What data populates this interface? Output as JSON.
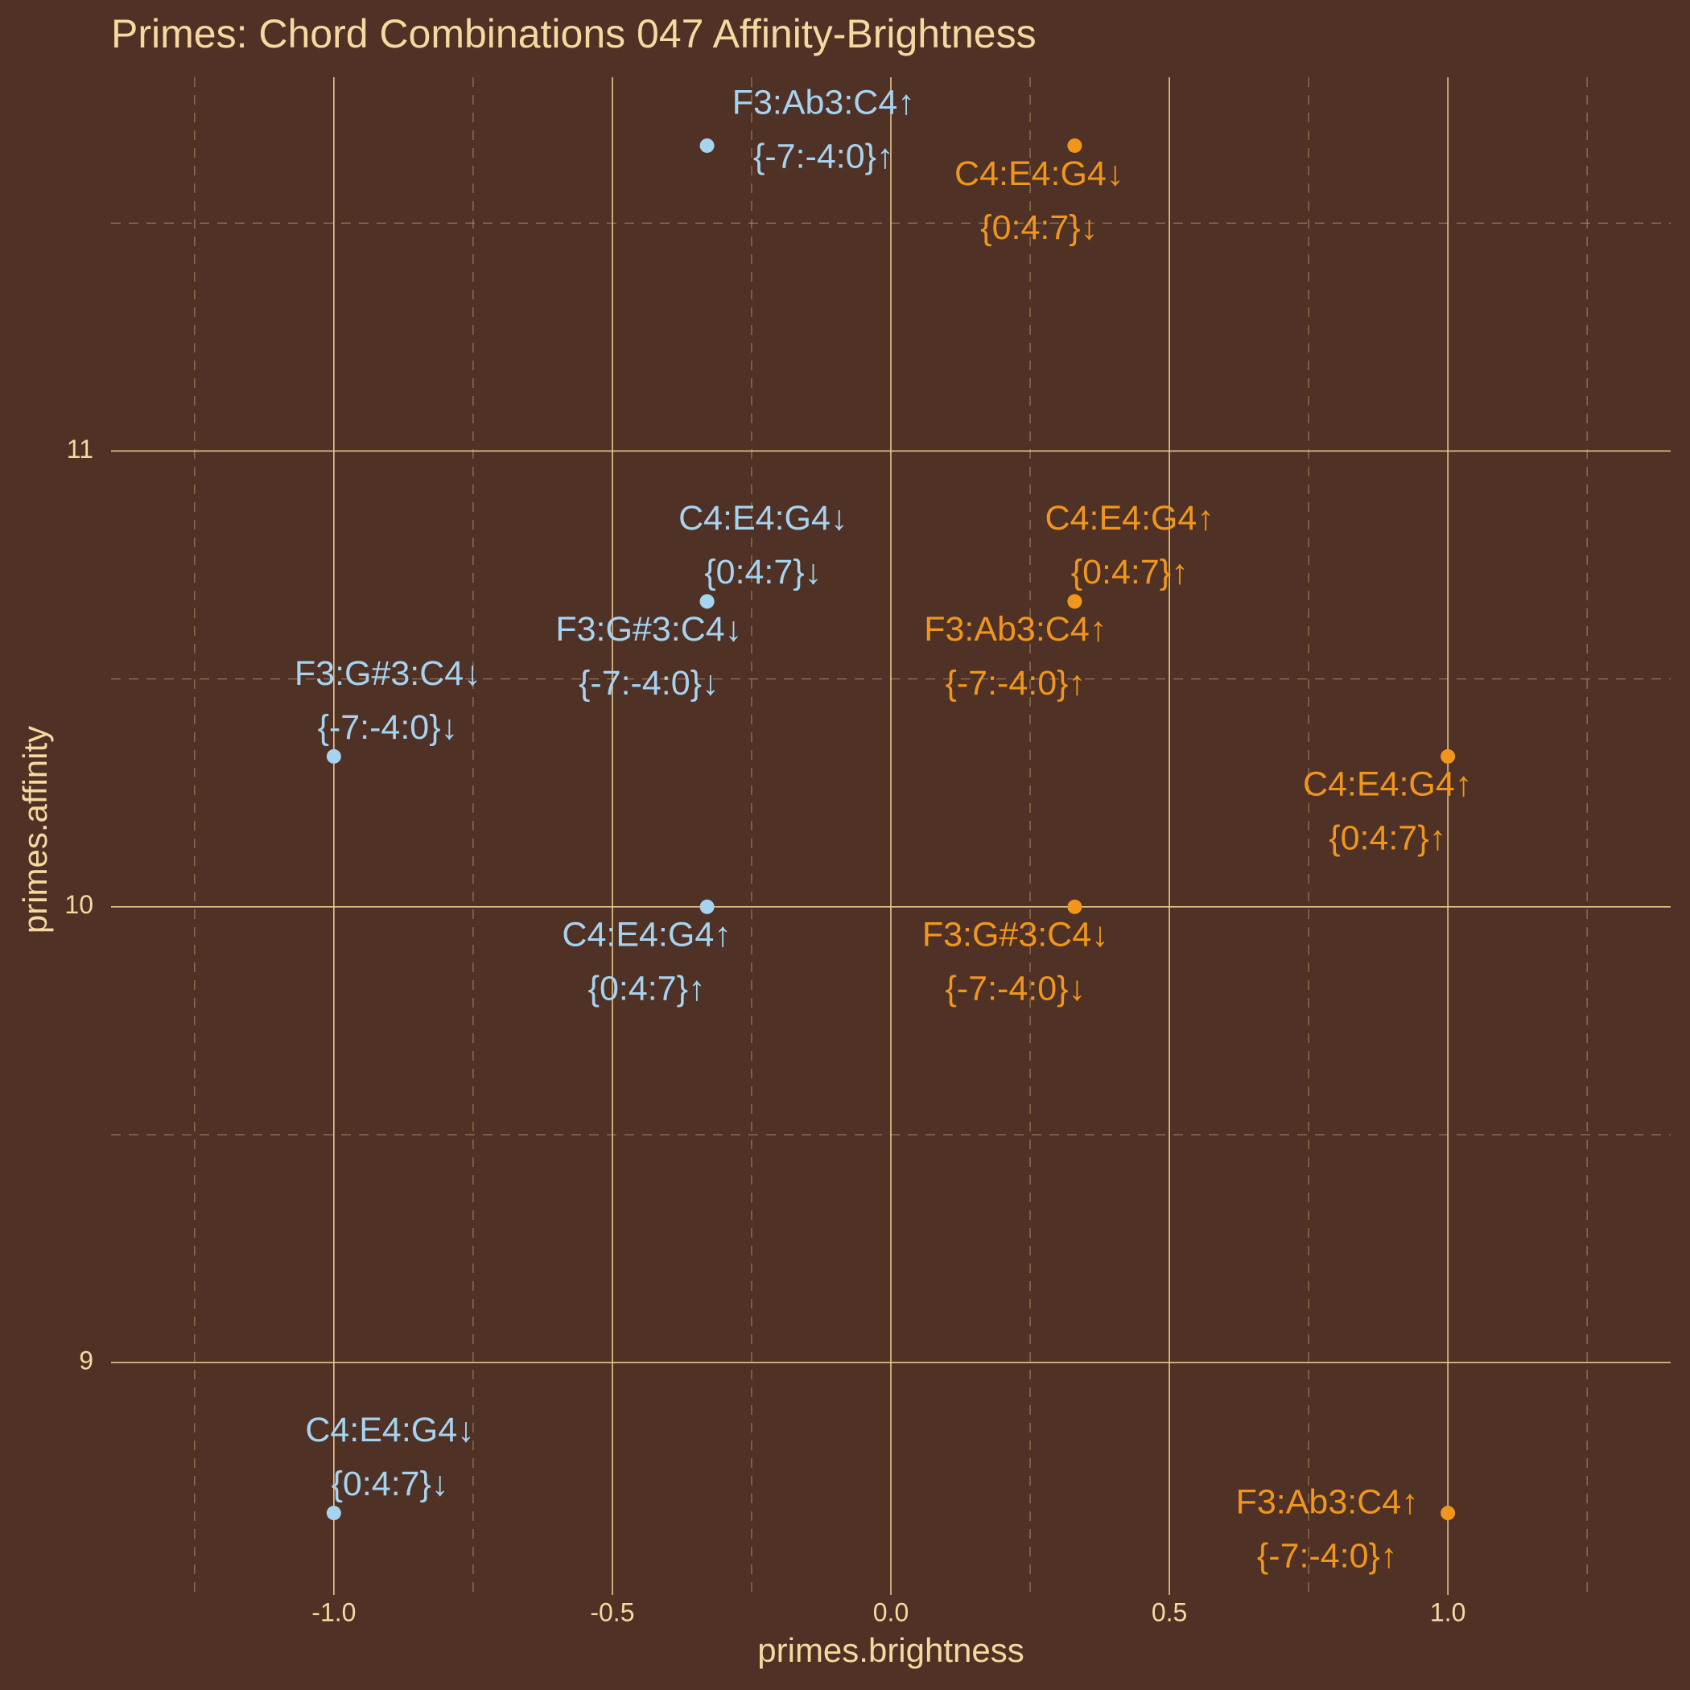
{
  "chart_data": {
    "type": "scatter",
    "title": "Primes: Chord Combinations 047 Affinity-Brightness",
    "xlabel": "primes.brightness",
    "ylabel": "primes.affinity",
    "xlim": [
      -1.4,
      1.4
    ],
    "ylim": [
      8.49,
      11.82
    ],
    "xticks": [
      {
        "value": -1,
        "label": "-1.0"
      },
      -0.5,
      {
        "value": 0,
        "label": "0.0"
      },
      0.5,
      {
        "value": 1,
        "label": "1.0"
      }
    ],
    "yticks": [
      9,
      10,
      11
    ],
    "xminor": [
      -1.25,
      -0.75,
      -0.25,
      0.25,
      0.75,
      1.25
    ],
    "yminor": [
      9.5,
      10.5,
      11.5
    ],
    "grid": true,
    "series": [
      {
        "color": "#a6d3f0",
        "x": [
          -0.33,
          -0.33,
          -0.33,
          -1,
          -0.33,
          -1
        ],
        "y": [
          11.67,
          10.67,
          10.67,
          10.33,
          10,
          8.67
        ],
        "labels": [
          [
            "F3:Ab3:C4↑",
            "{-7:-4:0}↑"
          ],
          [
            "C4:E4:G4↓",
            "{0:4:7}↓"
          ],
          [
            "F3:G#3:C4↓",
            "{-7:-4:0}↓"
          ],
          [
            "F3:G#3:C4↓",
            "{-7:-4:0}↓"
          ],
          [
            "C4:E4:G4↑",
            "{0:4:7}↑"
          ],
          [
            "C4:E4:G4↓",
            "{0:4:7}↓"
          ]
        ]
      },
      {
        "color": "#f0961c",
        "x": [
          0.33,
          0.33,
          0.33,
          1,
          0.33,
          1
        ],
        "y": [
          11.67,
          10.67,
          10.67,
          10.33,
          10,
          8.67
        ],
        "labels": [
          [
            "C4:E4:G4↓",
            "{0:4:7}↓"
          ],
          [
            "C4:E4:G4↑",
            "{0:4:7}↑"
          ],
          [
            "F3:Ab3:C4↑",
            "{-7:-4:0}↑"
          ],
          [
            "C4:E4:G4↑",
            "{0:4:7}↑"
          ],
          [
            "F3:G#3:C4↓",
            "{-7:-4:0}↓"
          ],
          [
            "F3:Ab3:C4↑",
            "{-7:-4:0}↑"
          ]
        ]
      }
    ]
  }
}
